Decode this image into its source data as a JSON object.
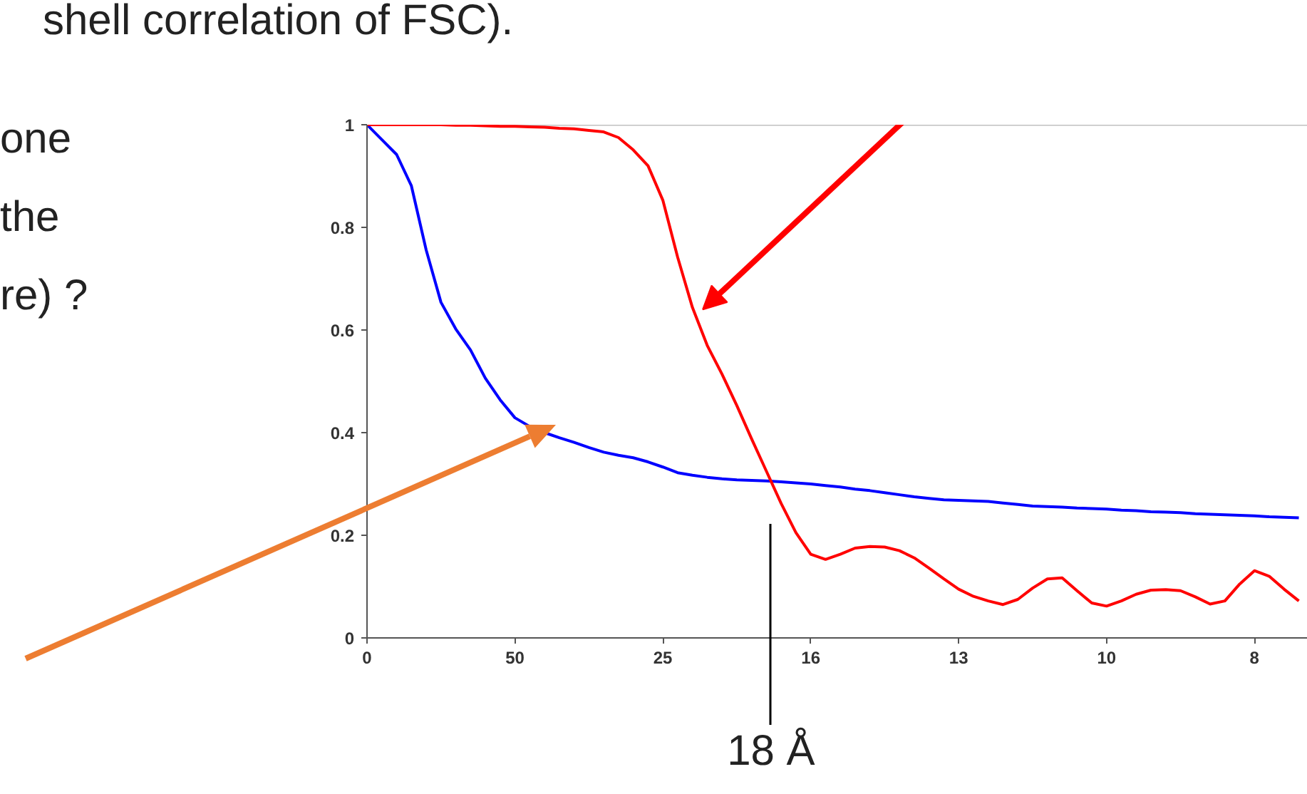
{
  "chart_data": {
    "type": "line",
    "annotations": [
      "shell correlation of FSC).",
      "one",
      "the",
      "re) ?",
      "18 Å"
    ],
    "categories": [
      "0",
      null,
      null,
      null,
      null,
      null,
      null,
      null,
      null,
      null,
      "50",
      null,
      null,
      null,
      null,
      null,
      null,
      null,
      null,
      null,
      "25",
      null,
      null,
      null,
      null,
      null,
      null,
      null,
      null,
      null,
      "16",
      null,
      null,
      null,
      null,
      null,
      null,
      null,
      null,
      null,
      "13",
      null,
      null,
      null,
      null,
      null,
      null,
      null,
      null,
      null,
      "10",
      null,
      null,
      null,
      null,
      null,
      null,
      null,
      null,
      null,
      "8",
      null,
      null,
      null
    ],
    "series": [
      {
        "color": "#0000ff",
        "values": [
          1,
          0.971,
          0.942,
          0.881,
          0.756,
          0.654,
          0.602,
          0.561,
          0.506,
          0.464,
          0.429,
          0.412,
          0.4,
          0.39,
          0.381,
          0.371,
          0.362,
          0.356,
          0.351,
          0.343,
          0.333,
          0.322,
          0.317,
          0.313,
          0.31,
          0.308,
          0.307,
          0.306,
          0.304,
          0.302,
          0.3,
          0.297,
          0.294,
          0.29,
          0.287,
          0.283,
          0.279,
          0.275,
          0.272,
          0.269,
          0.268,
          0.267,
          0.266,
          0.263,
          0.26,
          0.257,
          0.256,
          0.255,
          0.253,
          0.252,
          0.251,
          0.249,
          0.248,
          0.246,
          0.245,
          0.244,
          0.242,
          0.241,
          0.24,
          0.239,
          0.238,
          0.236,
          0.235,
          0.234
        ]
      },
      {
        "color": "#ff0000",
        "values": [
          1,
          1,
          1,
          1,
          1,
          1,
          0.999,
          0.999,
          0.998,
          0.997,
          0.997,
          0.996,
          0.995,
          0.993,
          0.992,
          0.989,
          0.986,
          0.975,
          0.951,
          0.92,
          0.853,
          0.742,
          0.644,
          0.57,
          0.514,
          0.453,
          0.388,
          0.325,
          0.262,
          0.205,
          0.163,
          0.153,
          0.163,
          0.175,
          0.178,
          0.177,
          0.17,
          0.156,
          0.136,
          0.115,
          0.095,
          0.081,
          0.072,
          0.065,
          0.075,
          0.097,
          0.115,
          0.117,
          0.092,
          0.068,
          0.062,
          0.072,
          0.085,
          0.093,
          0.094,
          0.092,
          0.08,
          0.066,
          0.072,
          0.105,
          0.131,
          0.12,
          0.095,
          0.072
        ]
      }
    ],
    "ylim": [
      0,
      1
    ],
    "yticks": [
      0,
      0.2,
      0.4,
      0.6,
      0.8,
      1
    ],
    "ref_lines": [
      {
        "axis": "y",
        "value": 1,
        "color": "#c0c0c0"
      }
    ],
    "grid": false,
    "marker": "none",
    "line_style": "solid"
  }
}
